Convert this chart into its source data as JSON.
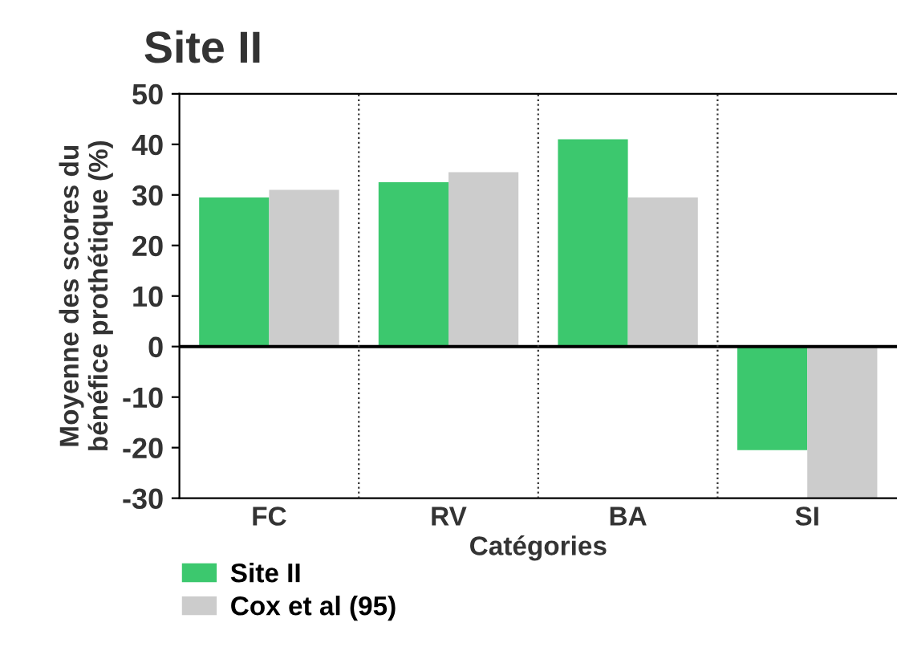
{
  "chart_data": {
    "type": "bar",
    "title": "Site II",
    "xlabel": "Catégories",
    "ylabel": "Moyenne des scores du\nbénéfice prothétique (%)",
    "categories": [
      "FC",
      "RV",
      "BA",
      "SI"
    ],
    "series": [
      {
        "name": "Site II",
        "color": "#3cc86e",
        "values": [
          29.5,
          32.5,
          41,
          -20.5
        ]
      },
      {
        "name": "Cox et al (95)",
        "color": "#cccccc",
        "values": [
          31,
          34.5,
          29.5,
          -30
        ]
      }
    ],
    "ylim": [
      -30,
      50
    ],
    "yticks": [
      -30,
      -20,
      -10,
      0,
      10,
      20,
      30,
      40,
      50
    ],
    "ref_lines": [
      {
        "axis": "y",
        "value": 0,
        "color": "#000000",
        "line_style": "solid"
      }
    ],
    "grid": false,
    "legend": "bottom left"
  }
}
